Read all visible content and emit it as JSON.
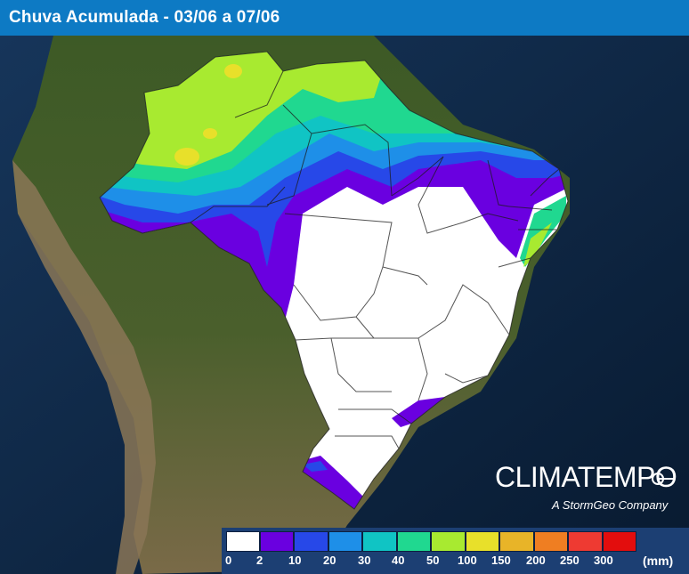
{
  "header": {
    "title": "Chuva Acumulada - 03/06 a 07/06"
  },
  "brand": {
    "logo_text": "CLIMATEMPO",
    "tagline": "A StormGeo Company"
  },
  "legend": {
    "unit": "(mm)",
    "bins": [
      {
        "label": "0",
        "color": "#ffffff"
      },
      {
        "label": "2",
        "color": "#6a00e0"
      },
      {
        "label": "10",
        "color": "#2748e8"
      },
      {
        "label": "20",
        "color": "#1e8fe8"
      },
      {
        "label": "30",
        "color": "#10c4c4"
      },
      {
        "label": "40",
        "color": "#20d890"
      },
      {
        "label": "50",
        "color": "#a8ea30"
      },
      {
        "label": "100",
        "color": "#e8e02a"
      },
      {
        "label": "150",
        "color": "#e8b428"
      },
      {
        "label": "200",
        "color": "#ef7e22"
      },
      {
        "label": "250",
        "color": "#ee3a32"
      },
      {
        "label": "300",
        "color": "#e30d0d"
      }
    ]
  },
  "colors": {
    "ocean": "#0b1e36",
    "land": "#3f5a2a",
    "titlebar": "#0d7ac4"
  }
}
